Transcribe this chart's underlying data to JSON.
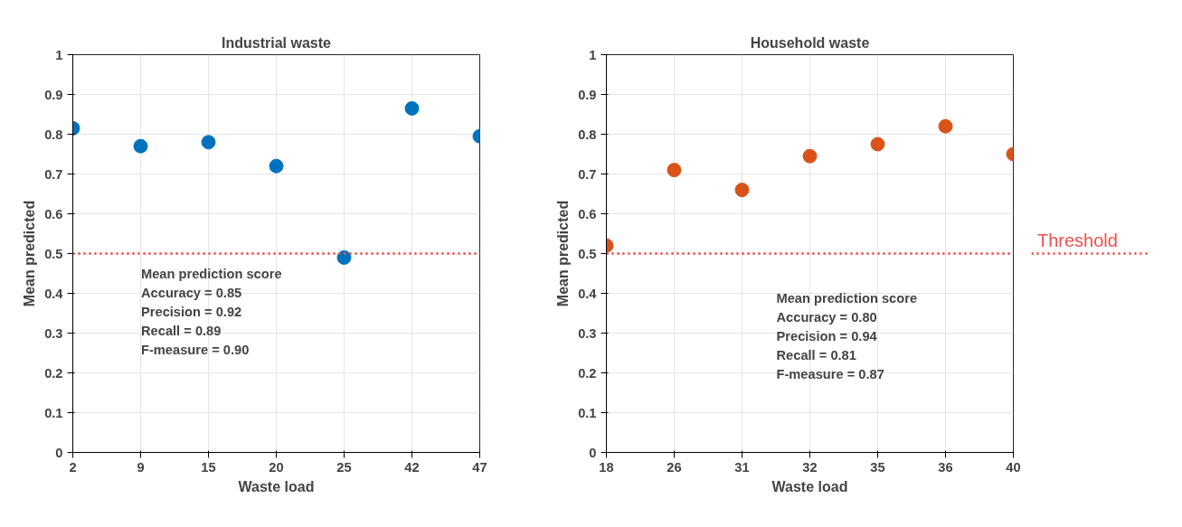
{
  "chart_data": [
    {
      "type": "scatter",
      "title": "Industrial waste",
      "xlabel": "Waste load",
      "ylabel": "Mean predicted",
      "categories": [
        "2",
        "9",
        "15",
        "20",
        "25",
        "42",
        "47"
      ],
      "series": [
        {
          "color": "#0072bd",
          "values": [
            0.815,
            0.77,
            0.78,
            0.72,
            0.49,
            0.865,
            0.795
          ]
        }
      ],
      "ylim": [
        0,
        1
      ],
      "yticks": [
        0,
        0.1,
        0.2,
        0.3,
        0.4,
        0.5,
        0.6,
        0.7,
        0.8,
        0.9,
        1
      ],
      "grid": true,
      "marker": "circle",
      "ref_lines": [
        {
          "axis": "y",
          "value": 0.5,
          "color": "#f05050",
          "line_style": "dotted"
        }
      ],
      "annotations": [
        "Mean prediction score",
        "Accuracy = 0.85",
        "Precision = 0.92",
        "Recall = 0.89",
        "F-measure = 0.90"
      ]
    },
    {
      "type": "scatter",
      "title": "Household waste",
      "xlabel": "Waste load",
      "ylabel": "Mean predicted",
      "categories": [
        "18",
        "26",
        "31",
        "32",
        "35",
        "36",
        "40"
      ],
      "series": [
        {
          "color": "#d95319",
          "values": [
            0.52,
            0.71,
            0.66,
            0.745,
            0.775,
            0.82,
            0.75
          ]
        }
      ],
      "ylim": [
        0,
        1
      ],
      "yticks": [
        0,
        0.1,
        0.2,
        0.3,
        0.4,
        0.5,
        0.6,
        0.7,
        0.8,
        0.9,
        1
      ],
      "grid": true,
      "marker": "circle",
      "ref_lines": [
        {
          "axis": "y",
          "value": 0.5,
          "label": "Threshold",
          "color": "#f05050",
          "line_style": "dotted"
        }
      ],
      "annotations": [
        "Mean prediction score",
        " Accuracy = 0.80",
        " Precision = 0.94",
        " Recall = 0.81",
        " F-measure = 0.87"
      ]
    }
  ]
}
